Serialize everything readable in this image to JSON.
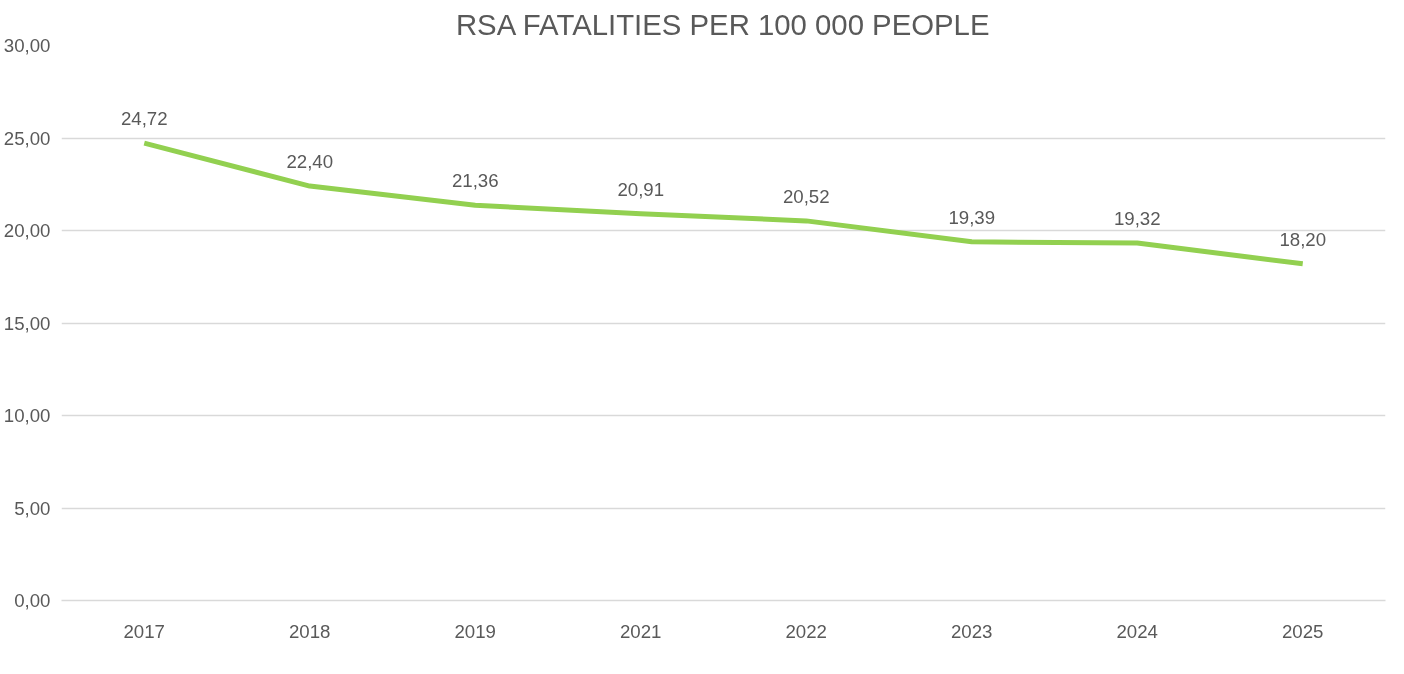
{
  "chart_data": {
    "type": "line",
    "title": "RSA FATALITIES PER 100 000 PEOPLE",
    "categories": [
      "2017",
      "2018",
      "2019",
      "2021",
      "2022",
      "2023",
      "2024",
      "2025"
    ],
    "series": [
      {
        "color": "#92d050",
        "values": [
          24.72,
          22.4,
          21.36,
          20.91,
          20.52,
          19.39,
          19.32,
          18.2
        ],
        "value_labels": [
          "24,72",
          "22,40",
          "21,36",
          "20,91",
          "20,52",
          "19,39",
          "19,32",
          "18,20"
        ]
      }
    ],
    "ylim": [
      0,
      30
    ],
    "yticks": [
      {
        "value": 0,
        "label": "0,00"
      },
      {
        "value": 5,
        "label": "5,00"
      },
      {
        "value": 10,
        "label": "10,00"
      },
      {
        "value": 15,
        "label": "15,00"
      },
      {
        "value": 20,
        "label": "20,00"
      },
      {
        "value": 25,
        "label": "25,00"
      },
      {
        "value": 30,
        "label": "30,00"
      }
    ],
    "grid": "y",
    "marker": "none",
    "line_style": "solid"
  }
}
